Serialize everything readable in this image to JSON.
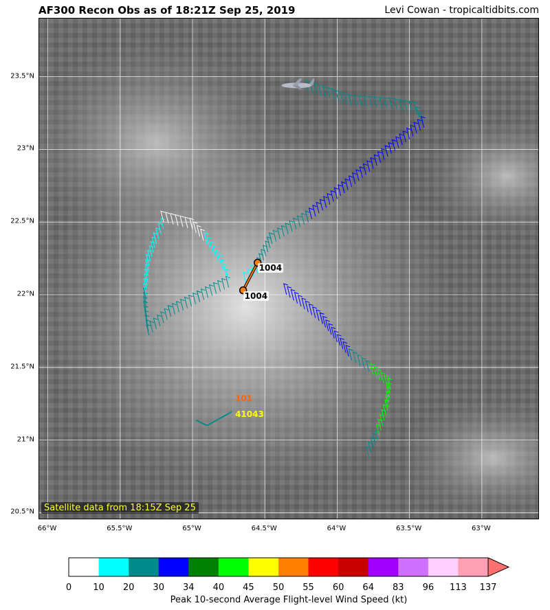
{
  "header": {
    "title": "AF300 Recon Obs as of 18:21Z Sep 25, 2019",
    "credit": "Levi Cowan - tropicaltidbits.com"
  },
  "map": {
    "lat_range": [
      20.45,
      23.9
    ],
    "lon_range": [
      -66.06,
      -62.6
    ],
    "lat_ticks": [
      {
        "value": 20.5,
        "label": "20.5°N"
      },
      {
        "value": 21.0,
        "label": "21°N"
      },
      {
        "value": 21.5,
        "label": "21.5°N"
      },
      {
        "value": 22.0,
        "label": "22°N"
      },
      {
        "value": 22.5,
        "label": "22.5°N"
      },
      {
        "value": 23.0,
        "label": "23°N"
      },
      {
        "value": 23.5,
        "label": "23.5°N"
      }
    ],
    "lon_ticks": [
      {
        "value": -66.0,
        "label": "66°W"
      },
      {
        "value": -65.5,
        "label": "65.5°W"
      },
      {
        "value": -65.0,
        "label": "65°W"
      },
      {
        "value": -64.5,
        "label": "64.5°W"
      },
      {
        "value": -64.0,
        "label": "64°W"
      },
      {
        "value": -63.5,
        "label": "63.5°W"
      },
      {
        "value": -63.0,
        "label": "63°W"
      }
    ],
    "satellite_label": "Satellite data from 18:15Z Sep 25",
    "aircraft_icon": "airplane-icon",
    "aircraft_position": {
      "lat": 23.44,
      "lon": -64.28
    },
    "pressure_points": [
      {
        "lat": 22.22,
        "lon": -64.55,
        "label": "1004"
      },
      {
        "lat": 22.03,
        "lon": -64.65,
        "label": "1004"
      }
    ],
    "buoy": {
      "lat": 21.1,
      "lon": -64.9,
      "value_label": "101",
      "value_color": "#ff6600",
      "id_label": "41043",
      "id_color": "#ffff00"
    },
    "flight_segments": [
      {
        "color": "#008b8b",
        "points": [
          [
            23.4,
            -64.2
          ],
          [
            23.3,
            -63.9
          ],
          [
            23.28,
            -63.62
          ],
          [
            23.25,
            -63.45
          ],
          [
            23.15,
            -63.4
          ]
        ]
      },
      {
        "color": "#0000ff",
        "points": [
          [
            23.15,
            -63.4
          ],
          [
            22.95,
            -63.65
          ],
          [
            22.7,
            -63.95
          ],
          [
            22.5,
            -64.2
          ]
        ]
      },
      {
        "color": "#008b8b",
        "points": [
          [
            22.5,
            -64.2
          ],
          [
            22.35,
            -64.45
          ],
          [
            22.15,
            -64.55
          ]
        ]
      },
      {
        "color": "#00ffff",
        "points": [
          [
            22.15,
            -64.55
          ],
          [
            22.08,
            -64.63
          ]
        ]
      },
      {
        "color": "#0000ff",
        "points": [
          [
            22.0,
            -64.35
          ],
          [
            21.8,
            -64.1
          ],
          [
            21.55,
            -63.9
          ]
        ]
      },
      {
        "color": "#008b8b",
        "points": [
          [
            21.55,
            -63.9
          ],
          [
            21.45,
            -63.75
          ]
        ]
      },
      {
        "color": "#00ff00",
        "points": [
          [
            21.45,
            -63.75
          ],
          [
            21.35,
            -63.63
          ],
          [
            21.2,
            -63.65
          ],
          [
            21.0,
            -63.72
          ]
        ]
      },
      {
        "color": "#008b8b",
        "points": [
          [
            21.0,
            -63.72
          ],
          [
            20.88,
            -63.78
          ]
        ]
      },
      {
        "color": "#008b8b",
        "points": [
          [
            22.05,
            -64.75
          ],
          [
            21.95,
            -64.95
          ],
          [
            21.85,
            -65.15
          ],
          [
            21.72,
            -65.3
          ]
        ]
      },
      {
        "color": "#008b8b",
        "points": [
          [
            21.72,
            -65.3
          ],
          [
            21.88,
            -65.32
          ],
          [
            22.0,
            -65.32
          ]
        ]
      },
      {
        "color": "#00ffff",
        "points": [
          [
            22.0,
            -65.32
          ],
          [
            22.2,
            -65.3
          ],
          [
            22.35,
            -65.25
          ],
          [
            22.45,
            -65.2
          ]
        ]
      },
      {
        "color": "#ffffff",
        "points": [
          [
            22.5,
            -65.2
          ],
          [
            22.45,
            -65.0
          ],
          [
            22.35,
            -64.9
          ]
        ]
      },
      {
        "color": "#00ffff",
        "points": [
          [
            22.35,
            -64.9
          ],
          [
            22.2,
            -64.8
          ],
          [
            22.1,
            -64.75
          ]
        ]
      }
    ]
  },
  "colorbar": {
    "label": "Peak 10-second Average Flight-level Wind Speed (kt)",
    "colors": [
      "#ffffff",
      "#00ffff",
      "#008b8b",
      "#0000ff",
      "#008000",
      "#00ff00",
      "#ffff00",
      "#ff7f00",
      "#ff0000",
      "#c80000",
      "#a000ff",
      "#d070ff",
      "#ffd0ff",
      "#ffa0b4",
      "#ff7070"
    ],
    "ticks": [
      "0",
      "10",
      "20",
      "30",
      "34",
      "40",
      "45",
      "50",
      "55",
      "60",
      "64",
      "83",
      "96",
      "113",
      "137"
    ]
  }
}
